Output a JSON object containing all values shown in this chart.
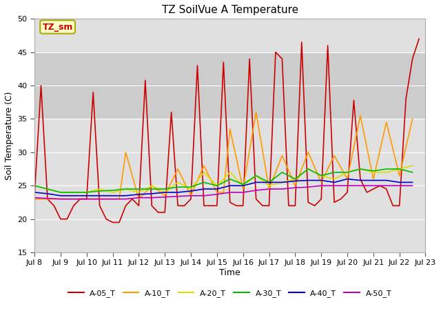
{
  "title": "TZ SoilVue A Temperature",
  "ylabel": "Soil Temperature (C)",
  "xlabel": "Time",
  "ylim": [
    15,
    50
  ],
  "xlim": [
    0,
    15
  ],
  "background_color": "#ffffff",
  "plot_bg_color": "#e0e0e0",
  "shaded_band": [
    35,
    45
  ],
  "shaded_color": "#cccccc",
  "annotation_text": "TZ_sm",
  "series": {
    "A-05_T": {
      "color": "#cc0000",
      "linewidth": 1.2,
      "values_x": [
        0,
        0.25,
        0.5,
        0.75,
        1.0,
        1.25,
        1.5,
        1.75,
        2.0,
        2.25,
        2.5,
        2.75,
        3.0,
        3.25,
        3.5,
        3.75,
        4.0,
        4.25,
        4.5,
        4.75,
        5.0,
        5.25,
        5.5,
        5.75,
        6.0,
        6.25,
        6.5,
        6.75,
        7.0,
        7.25,
        7.5,
        7.75,
        8.0,
        8.25,
        8.5,
        8.75,
        9.0,
        9.25,
        9.5,
        9.75,
        10.0,
        10.25,
        10.5,
        10.75,
        11.0,
        11.25,
        11.5,
        11.75,
        12.0,
        12.25,
        12.5,
        12.75,
        13.0,
        13.25,
        13.5,
        13.75,
        14.0,
        14.25,
        14.5,
        14.75
      ],
      "values_y": [
        23.5,
        40,
        23,
        22,
        20,
        20,
        22,
        23,
        23,
        39,
        22,
        20,
        19.5,
        19.5,
        22,
        23,
        22,
        40.8,
        22,
        21,
        21,
        36,
        22,
        22,
        23,
        43,
        22,
        22,
        22,
        43.5,
        22.5,
        22,
        22,
        44,
        23,
        22,
        22,
        45,
        44,
        22,
        22,
        46.5,
        22.5,
        22,
        23,
        46,
        22.5,
        23,
        24,
        37.8,
        26,
        24,
        24.5,
        25,
        24.5,
        22,
        22,
        38,
        44,
        47
      ]
    },
    "A-10_T": {
      "color": "#ff9900",
      "linewidth": 1.2,
      "values_x": [
        0,
        0.5,
        1.0,
        1.5,
        2.0,
        2.5,
        3.0,
        3.25,
        3.5,
        4.0,
        4.5,
        5.0,
        5.5,
        6.0,
        6.5,
        7.0,
        7.25,
        7.5,
        8.0,
        8.5,
        9.0,
        9.5,
        10.0,
        10.5,
        11.0,
        11.5,
        12.0,
        12.5,
        13.0,
        13.5,
        14.0,
        14.5
      ],
      "values_y": [
        23,
        23,
        23,
        23,
        23,
        23,
        23,
        23,
        30,
        23,
        25,
        23.5,
        27.5,
        23.5,
        28,
        24,
        24,
        33.5,
        24.5,
        36,
        24.5,
        29.5,
        25,
        30,
        25.5,
        29.5,
        26,
        35.5,
        26,
        34.5,
        26.5,
        35
      ]
    },
    "A-20_T": {
      "color": "#dddd00",
      "linewidth": 1.2,
      "values_x": [
        0,
        0.5,
        1.0,
        1.5,
        2.0,
        2.5,
        3.0,
        3.5,
        4.0,
        4.5,
        5.0,
        5.5,
        6.0,
        6.5,
        7.0,
        7.5,
        8.0,
        8.5,
        9.0,
        9.5,
        10.0,
        10.5,
        11.0,
        11.5,
        12.0,
        12.5,
        13.0,
        13.5,
        14.0,
        14.5
      ],
      "values_y": [
        25,
        24.5,
        24,
        24,
        24,
        24.5,
        24,
        24.5,
        24,
        25,
        24,
        25.5,
        24.5,
        27,
        25,
        27,
        25,
        26.5,
        25,
        25.5,
        26,
        27.5,
        26.5,
        26,
        27,
        27.5,
        27,
        27,
        27.5,
        28
      ]
    },
    "A-30_T": {
      "color": "#00bb00",
      "linewidth": 1.2,
      "values_x": [
        0,
        0.5,
        1.0,
        1.5,
        2.0,
        2.5,
        3.0,
        3.5,
        4.0,
        4.5,
        5.0,
        5.5,
        6.0,
        6.5,
        7.0,
        7.5,
        8.0,
        8.5,
        9.0,
        9.5,
        10.0,
        10.5,
        11.0,
        11.5,
        12.0,
        12.5,
        13.0,
        13.5,
        14.0,
        14.5
      ],
      "values_y": [
        25,
        24.5,
        24,
        24,
        24,
        24.2,
        24.3,
        24.5,
        24.5,
        24.5,
        24.5,
        24.8,
        24.8,
        25.5,
        25,
        26,
        25.2,
        26.5,
        25.5,
        27,
        26,
        27.5,
        26.5,
        27,
        27,
        27.5,
        27.2,
        27.5,
        27.5,
        27
      ]
    },
    "A-40_T": {
      "color": "#0000cc",
      "linewidth": 1.2,
      "values_x": [
        0,
        0.5,
        1.0,
        1.5,
        2.0,
        2.5,
        3.0,
        3.5,
        4.0,
        4.5,
        5.0,
        5.5,
        6.0,
        6.5,
        7.0,
        7.5,
        8.0,
        8.5,
        9.0,
        9.5,
        10.0,
        10.5,
        11.0,
        11.5,
        12.0,
        12.5,
        13.0,
        13.5,
        14.0,
        14.5
      ],
      "values_y": [
        24,
        23.8,
        23.5,
        23.5,
        23.5,
        23.5,
        23.5,
        23.5,
        23.7,
        23.8,
        24,
        24,
        24.2,
        24.5,
        24.5,
        25,
        25,
        25.5,
        25.5,
        25.5,
        25.7,
        25.8,
        25.8,
        25.5,
        26,
        25.8,
        25.8,
        25.8,
        25.5,
        25.5
      ]
    },
    "A-50_T": {
      "color": "#bb00bb",
      "linewidth": 1.2,
      "values_x": [
        0,
        0.5,
        1.0,
        1.5,
        2.0,
        2.5,
        3.0,
        3.5,
        4.0,
        4.5,
        5.0,
        5.5,
        6.0,
        6.5,
        7.0,
        7.5,
        8.0,
        8.5,
        9.0,
        9.5,
        10.0,
        10.5,
        11.0,
        11.5,
        12.0,
        12.5,
        13.0,
        13.5,
        14.0,
        14.5
      ],
      "values_y": [
        23.2,
        23.1,
        23,
        23,
        23,
        23,
        23,
        23,
        23.2,
        23.2,
        23.3,
        23.4,
        23.5,
        23.5,
        23.7,
        24,
        24,
        24.3,
        24.5,
        24.5,
        24.7,
        24.8,
        25,
        25,
        25,
        25,
        25,
        25,
        25,
        25
      ]
    }
  },
  "x_ticks": [
    0,
    1,
    2,
    3,
    4,
    5,
    6,
    7,
    8,
    9,
    10,
    11,
    12,
    13,
    14,
    15
  ],
  "x_tick_labels": [
    "Jul 8",
    "Jul 9",
    "Jul 10",
    "Jul 11",
    "Jul 12",
    "Jul 13",
    "Jul 14",
    "Jul 15",
    "Jul 16",
    "Jul 17",
    "Jul 18",
    "Jul 19",
    "Jul 20",
    "Jul 21",
    "Jul 22",
    "Jul 23"
  ],
  "yticks": [
    15,
    20,
    25,
    30,
    35,
    40,
    45,
    50
  ],
  "grid_color": "#ffffff",
  "tick_fontsize": 8,
  "label_fontsize": 9,
  "title_fontsize": 11,
  "legend_labels": [
    "A-05_T",
    "A-10_T",
    "A-20_T",
    "A-30_T",
    "A-40_T",
    "A-50_T"
  ],
  "legend_colors": [
    "#cc0000",
    "#ff9900",
    "#dddd00",
    "#00bb00",
    "#0000cc",
    "#bb00bb"
  ]
}
